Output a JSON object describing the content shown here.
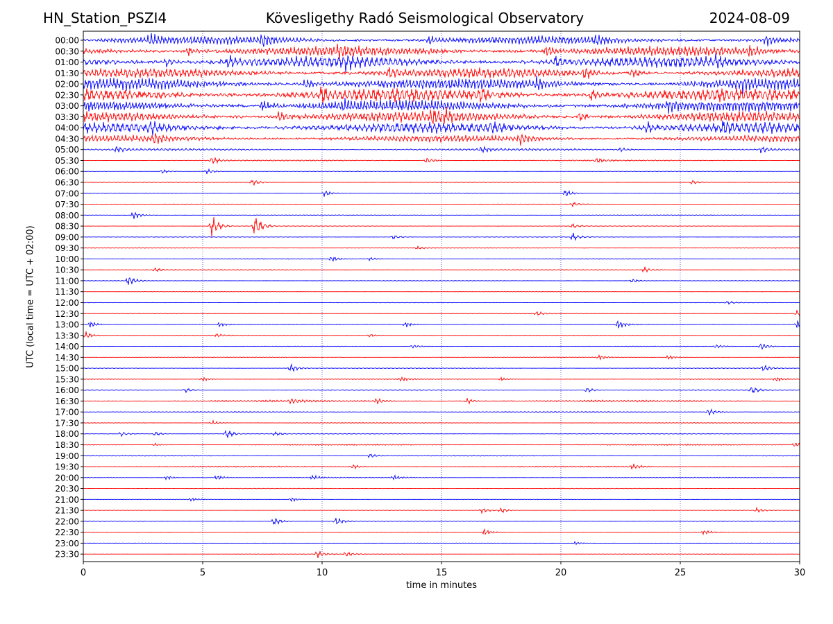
{
  "chart_data": {
    "type": "line",
    "subtype": "helicorder",
    "title_left": "HN_Station_PSZI4",
    "title_center": "Kövesligethy Radó Seismological Observatory",
    "title_right": "2024-08-09",
    "xlabel": "time in minutes",
    "ylabel": "UTC (local time = UTC + 02:00)",
    "xlim": [
      0,
      30
    ],
    "x_ticks": [
      "0",
      "5",
      "10",
      "15",
      "20",
      "25",
      "30"
    ],
    "grid": "vertical dotted lines at 5-minute intervals",
    "colors": {
      "even_rows": "#0000ff",
      "odd_rows": "#ff0000",
      "gridline": "#0000aa",
      "frame": "#000000"
    },
    "rows": [
      {
        "label": "00:00",
        "level": 0.55,
        "events": [
          [
            2.8,
            0.9
          ],
          [
            7.5,
            1.0
          ],
          [
            14.5,
            0.7
          ],
          [
            21.5,
            0.8
          ],
          [
            28.6,
            1.0
          ]
        ]
      },
      {
        "label": "00:30",
        "level": 0.65,
        "events": [
          [
            4.4,
            0.8
          ],
          [
            10.7,
            0.9
          ],
          [
            19.4,
            1.0
          ],
          [
            27.9,
            0.9
          ]
        ]
      },
      {
        "label": "01:00",
        "level": 0.75,
        "events": [
          [
            3.5,
            1.0
          ],
          [
            6.1,
            0.9
          ],
          [
            11.0,
            0.8
          ],
          [
            19.8,
            0.9
          ],
          [
            26.5,
            0.8
          ]
        ]
      },
      {
        "label": "01:30",
        "level": 0.65,
        "events": [
          [
            12.8,
            1.0
          ],
          [
            21.0,
            1.0
          ],
          [
            23.0,
            0.8
          ]
        ]
      },
      {
        "label": "02:00",
        "level": 0.75,
        "events": [
          [
            9.3,
            1.0
          ],
          [
            19.0,
            1.0
          ],
          [
            27.6,
            0.9
          ]
        ]
      },
      {
        "label": "02:30",
        "level": 0.85,
        "events": [
          [
            10.0,
            1.0
          ],
          [
            16.6,
            1.0
          ],
          [
            21.3,
            1.0
          ]
        ]
      },
      {
        "label": "03:00",
        "level": 0.75,
        "events": [
          [
            7.5,
            1.0
          ],
          [
            10.9,
            0.8
          ],
          [
            24.5,
            0.8
          ]
        ]
      },
      {
        "label": "03:30",
        "level": 0.7,
        "events": [
          [
            8.2,
            1.0
          ],
          [
            14.6,
            1.0
          ],
          [
            15.2,
            0.8
          ],
          [
            20.8,
            1.0
          ]
        ]
      },
      {
        "label": "04:00",
        "level": 0.7,
        "events": [
          [
            2.8,
            0.9
          ],
          [
            17.1,
            0.8
          ],
          [
            23.6,
            0.9
          ],
          [
            26.8,
            0.8
          ]
        ]
      },
      {
        "label": "04:30",
        "level": 0.45,
        "events": [
          [
            3.0,
            0.8
          ],
          [
            18.3,
            1.0
          ]
        ]
      },
      {
        "label": "05:00",
        "level": 0.15,
        "events": [
          [
            1.4,
            0.5
          ],
          [
            16.7,
            0.5
          ],
          [
            22.5,
            0.4
          ],
          [
            28.4,
            0.6
          ]
        ]
      },
      {
        "label": "05:30",
        "level": 0.08,
        "events": [
          [
            5.4,
            0.7
          ],
          [
            14.4,
            0.6
          ],
          [
            21.5,
            0.4
          ]
        ]
      },
      {
        "label": "06:00",
        "level": 0.04,
        "events": [
          [
            3.3,
            0.4
          ],
          [
            5.2,
            0.5
          ]
        ]
      },
      {
        "label": "06:30",
        "level": 0.04,
        "events": [
          [
            7.1,
            0.6
          ],
          [
            25.5,
            0.4
          ]
        ]
      },
      {
        "label": "07:00",
        "level": 0.05,
        "events": [
          [
            10.1,
            0.6
          ],
          [
            20.2,
            0.7
          ]
        ]
      },
      {
        "label": "07:30",
        "level": 0.04,
        "events": [
          [
            20.5,
            0.4
          ]
        ]
      },
      {
        "label": "08:00",
        "level": 0.05,
        "events": [
          [
            2.1,
            0.8
          ]
        ]
      },
      {
        "label": "08:30",
        "level": 0.04,
        "events": [
          [
            5.4,
            2.0
          ],
          [
            7.2,
            2.0
          ],
          [
            20.5,
            0.4
          ]
        ]
      },
      {
        "label": "09:00",
        "level": 0.04,
        "events": [
          [
            13.0,
            0.4
          ],
          [
            20.5,
            0.7
          ]
        ]
      },
      {
        "label": "09:30",
        "level": 0.04,
        "events": [
          [
            14.0,
            0.3
          ]
        ]
      },
      {
        "label": "10:00",
        "level": 0.05,
        "events": [
          [
            10.4,
            0.5
          ],
          [
            12.0,
            0.3
          ]
        ]
      },
      {
        "label": "10:30",
        "level": 0.05,
        "events": [
          [
            3.0,
            0.4
          ],
          [
            23.5,
            0.5
          ]
        ]
      },
      {
        "label": "11:00",
        "level": 0.04,
        "events": [
          [
            1.9,
            0.9
          ],
          [
            23.0,
            0.4
          ]
        ]
      },
      {
        "label": "11:30",
        "level": 0.03,
        "events": []
      },
      {
        "label": "12:00",
        "level": 0.03,
        "events": [
          [
            27.0,
            0.3
          ]
        ]
      },
      {
        "label": "12:30",
        "level": 0.04,
        "events": [
          [
            19.0,
            0.4
          ],
          [
            29.9,
            0.6
          ]
        ]
      },
      {
        "label": "13:00",
        "level": 0.05,
        "events": [
          [
            0.3,
            0.6
          ],
          [
            5.7,
            0.4
          ],
          [
            13.5,
            0.5
          ],
          [
            22.4,
            0.8
          ],
          [
            29.9,
            0.8
          ]
        ]
      },
      {
        "label": "13:30",
        "level": 0.04,
        "events": [
          [
            0.1,
            0.7
          ],
          [
            5.6,
            0.3
          ],
          [
            12.0,
            0.3
          ]
        ]
      },
      {
        "label": "14:00",
        "level": 0.04,
        "events": [
          [
            13.8,
            0.4
          ],
          [
            28.4,
            0.8
          ],
          [
            26.5,
            0.4
          ]
        ]
      },
      {
        "label": "14:30",
        "level": 0.05,
        "events": [
          [
            21.6,
            0.4
          ],
          [
            24.5,
            0.4
          ]
        ]
      },
      {
        "label": "15:00",
        "level": 0.05,
        "events": [
          [
            8.7,
            0.8
          ],
          [
            28.5,
            0.6
          ]
        ]
      },
      {
        "label": "15:30",
        "level": 0.06,
        "events": [
          [
            5.0,
            0.4
          ],
          [
            13.3,
            0.4
          ],
          [
            17.5,
            0.3
          ],
          [
            29.0,
            0.4
          ]
        ]
      },
      {
        "label": "16:00",
        "level": 0.07,
        "events": [
          [
            4.3,
            0.4
          ],
          [
            21.1,
            0.5
          ],
          [
            28.0,
            0.6
          ]
        ]
      },
      {
        "label": "16:30",
        "level": 0.12,
        "events": [
          [
            8.7,
            0.6
          ],
          [
            12.3,
            0.6
          ],
          [
            16.1,
            0.6
          ]
        ]
      },
      {
        "label": "17:00",
        "level": 0.06,
        "events": [
          [
            26.2,
            0.8
          ]
        ]
      },
      {
        "label": "17:30",
        "level": 0.05,
        "events": [
          [
            5.4,
            0.4
          ]
        ]
      },
      {
        "label": "18:00",
        "level": 0.05,
        "events": [
          [
            1.6,
            0.5
          ],
          [
            3.0,
            0.4
          ],
          [
            6.0,
            0.8
          ],
          [
            8.0,
            0.3
          ]
        ]
      },
      {
        "label": "18:30",
        "level": 0.09,
        "events": [
          [
            3.0,
            0.3
          ],
          [
            29.8,
            0.5
          ]
        ]
      },
      {
        "label": "19:00",
        "level": 0.07,
        "events": [
          [
            12.0,
            0.4
          ]
        ]
      },
      {
        "label": "19:30",
        "level": 0.08,
        "events": [
          [
            11.3,
            0.4
          ],
          [
            23.0,
            0.5
          ]
        ]
      },
      {
        "label": "20:00",
        "level": 0.06,
        "events": [
          [
            3.5,
            0.4
          ],
          [
            5.6,
            0.5
          ],
          [
            9.6,
            0.4
          ],
          [
            13.0,
            0.4
          ]
        ]
      },
      {
        "label": "20:30",
        "level": 0.04,
        "events": []
      },
      {
        "label": "21:00",
        "level": 0.04,
        "events": [
          [
            4.5,
            0.3
          ],
          [
            8.7,
            0.4
          ]
        ]
      },
      {
        "label": "21:30",
        "level": 0.04,
        "events": [
          [
            16.7,
            0.5
          ],
          [
            17.5,
            0.5
          ],
          [
            28.2,
            0.4
          ]
        ]
      },
      {
        "label": "22:00",
        "level": 0.05,
        "events": [
          [
            8.0,
            0.8
          ],
          [
            10.6,
            0.7
          ]
        ]
      },
      {
        "label": "22:30",
        "level": 0.04,
        "events": [
          [
            16.8,
            0.6
          ],
          [
            26.0,
            0.4
          ]
        ]
      },
      {
        "label": "23:00",
        "level": 0.03,
        "events": [
          [
            20.6,
            0.3
          ]
        ]
      },
      {
        "label": "23:30",
        "level": 0.03,
        "events": [
          [
            9.8,
            0.7
          ],
          [
            11.0,
            0.5
          ]
        ]
      }
    ]
  }
}
